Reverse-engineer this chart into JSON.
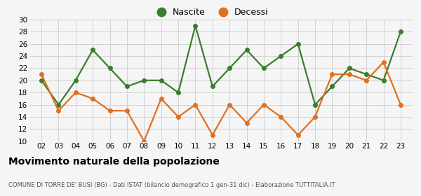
{
  "years": [
    2,
    3,
    4,
    5,
    6,
    7,
    8,
    9,
    10,
    11,
    12,
    13,
    14,
    15,
    16,
    17,
    18,
    19,
    20,
    21,
    22,
    23
  ],
  "nascite": [
    20,
    16,
    20,
    25,
    22,
    19,
    20,
    20,
    18,
    29,
    19,
    22,
    25,
    22,
    24,
    26,
    16,
    19,
    22,
    21,
    20,
    28
  ],
  "decessi": [
    21,
    15,
    18,
    17,
    15,
    15,
    10,
    17,
    14,
    16,
    11,
    16,
    13,
    16,
    14,
    11,
    14,
    21,
    21,
    20,
    23,
    16
  ],
  "nascite_color": "#3a7d2c",
  "decessi_color": "#e07020",
  "background_color": "#f5f5f5",
  "grid_color": "#cccccc",
  "ylim": [
    10,
    30
  ],
  "yticks": [
    10,
    12,
    14,
    16,
    18,
    20,
    22,
    24,
    26,
    28,
    30
  ],
  "title": "Movimento naturale della popolazione",
  "subtitle": "COMUNE DI TORRE DE' BUSI (BG) - Dati ISTAT (bilancio demografico 1 gen-31 dic) - Elaborazione TUTTITALIA.IT",
  "legend_nascite": "Nascite",
  "legend_decessi": "Decessi",
  "marker_size": 4,
  "line_width": 1.6
}
